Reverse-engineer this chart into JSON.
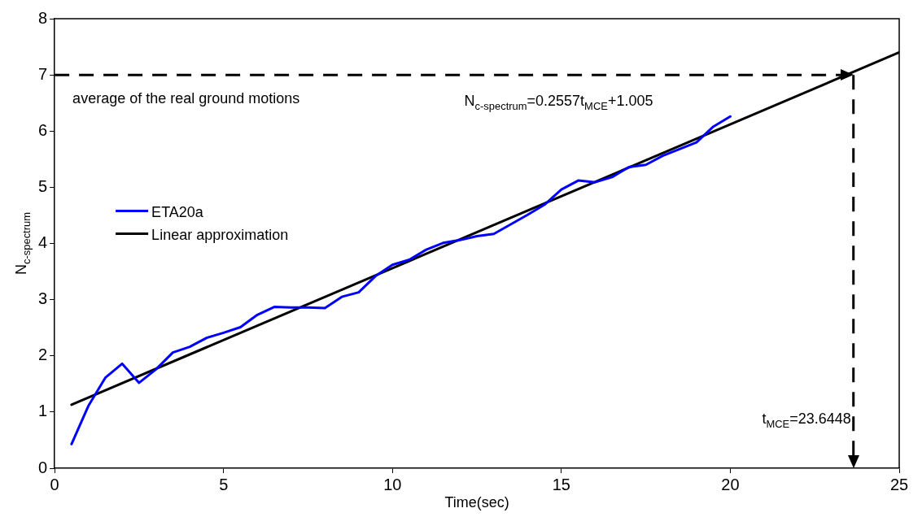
{
  "chart_data": {
    "type": "line",
    "xlabel": "Time(sec)",
    "ylabel": "N$_{c-spectrum}$",
    "xlim": [
      0,
      25
    ],
    "xticks": [
      0,
      5,
      10,
      15,
      20,
      25
    ],
    "ylim": [
      0,
      8
    ],
    "yticks": [
      0,
      1,
      2,
      3,
      4,
      5,
      6,
      7,
      8
    ],
    "grid": false,
    "legend": "left",
    "marker": "none",
    "line_style": "solid",
    "series": [
      {
        "name": "ETA20a",
        "color": "#0000ff",
        "x": [
          0.5,
          1,
          1.5,
          2,
          2.5,
          3,
          3.5,
          4,
          4.5,
          5,
          5.5,
          6,
          6.5,
          7,
          7.5,
          8,
          8.5,
          9,
          9.5,
          10,
          10.5,
          11,
          11.5,
          12,
          12.5,
          13,
          13.5,
          14,
          14.5,
          15,
          15.5,
          16,
          16.5,
          17,
          17.5,
          18,
          18.5,
          19,
          19.5,
          20
        ],
        "values": [
          0.43,
          1.11,
          1.61,
          1.86,
          1.52,
          1.76,
          2.06,
          2.16,
          2.32,
          2.41,
          2.51,
          2.73,
          2.87,
          2.86,
          2.86,
          2.85,
          3.05,
          3.13,
          3.42,
          3.62,
          3.71,
          3.89,
          4.01,
          4.06,
          4.13,
          4.17,
          4.34,
          4.51,
          4.69,
          4.96,
          5.12,
          5.09,
          5.18,
          5.36,
          5.4,
          5.56,
          5.68,
          5.8,
          6.08,
          6.26
        ]
      },
      {
        "name": "Linear approximation",
        "color": "#000000",
        "x": [
          0.5,
          25
        ],
        "values": [
          1.13,
          7.4
        ]
      }
    ],
    "ref_lines": [
      {
        "axis": "y",
        "value": 7,
        "label": "average of the real ground motions",
        "color": "#000000",
        "line_style": "dashed"
      },
      {
        "axis": "x",
        "value": 23.6448,
        "label": "t$_{MCE}$=23.6448",
        "color": "#000000",
        "line_style": "dashed"
      }
    ],
    "annotations": [
      "N$_{c-spectrum}$=0.2557t$_{MCE}$+1.005"
    ]
  }
}
